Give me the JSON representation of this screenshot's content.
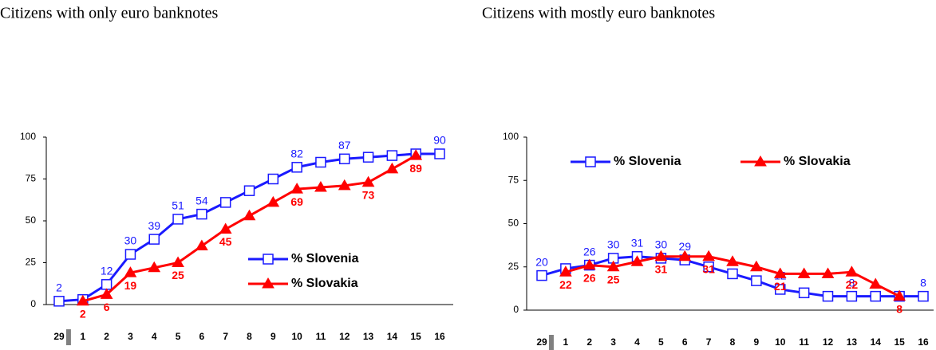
{
  "chart_data": [
    {
      "type": "line",
      "title": "Citizens with only euro banknotes",
      "categories": [
        "29",
        "1",
        "2",
        "3",
        "4",
        "5",
        "6",
        "7",
        "8",
        "9",
        "10",
        "11",
        "12",
        "13",
        "14",
        "15",
        "16"
      ],
      "ylim": [
        0,
        100
      ],
      "yticks": [
        0,
        25,
        50,
        75,
        100
      ],
      "legend": "lower right",
      "series": [
        {
          "name": "% Slovenia",
          "color": "#1a1aff",
          "marker": "square",
          "values": [
            2,
            3,
            12,
            30,
            39,
            51,
            54,
            61,
            68,
            75,
            82,
            85,
            87,
            88,
            89,
            90,
            90
          ],
          "value_labels": [
            "2",
            null,
            "12",
            "30",
            "39",
            "51",
            "54",
            null,
            null,
            null,
            "82",
            null,
            "87",
            null,
            null,
            null,
            "90"
          ]
        },
        {
          "name": "% Slovakia",
          "color": "#ff0000",
          "marker": "triangle",
          "values": [
            null,
            2,
            6,
            19,
            22,
            25,
            35,
            45,
            53,
            61,
            69,
            70,
            71,
            73,
            81,
            89,
            null
          ],
          "value_labels": [
            null,
            "2",
            "6",
            "19",
            null,
            "25",
            null,
            "45",
            null,
            null,
            "69",
            null,
            null,
            "73",
            null,
            "89",
            null
          ]
        }
      ]
    },
    {
      "type": "line",
      "title": "Citizens with mostly euro banknotes",
      "categories": [
        "29",
        "1",
        "2",
        "3",
        "4",
        "5",
        "6",
        "7",
        "8",
        "9",
        "10",
        "11",
        "12",
        "13",
        "14",
        "15",
        "16"
      ],
      "ylim": [
        0,
        100
      ],
      "yticks": [
        0,
        25,
        50,
        75,
        100
      ],
      "legend": "upper center",
      "series": [
        {
          "name": "% Slovenia",
          "color": "#1a1aff",
          "marker": "square",
          "values": [
            20,
            24,
            26,
            30,
            31,
            30,
            29,
            25,
            21,
            17,
            12,
            10,
            8,
            8,
            8,
            8,
            8
          ],
          "value_labels": [
            "20",
            null,
            "26",
            "30",
            "31",
            "30",
            "29",
            null,
            null,
            null,
            "12",
            null,
            null,
            "8",
            null,
            null,
            "8"
          ]
        },
        {
          "name": "% Slovakia",
          "color": "#ff0000",
          "marker": "triangle",
          "values": [
            null,
            22,
            26,
            25,
            28,
            31,
            31,
            31,
            28,
            25,
            21,
            21,
            21,
            22,
            15,
            8,
            null
          ],
          "value_labels": [
            null,
            "22",
            "26",
            "25",
            null,
            "31",
            null,
            "31",
            null,
            null,
            "21",
            null,
            null,
            "22",
            null,
            "8",
            null
          ]
        }
      ]
    }
  ]
}
